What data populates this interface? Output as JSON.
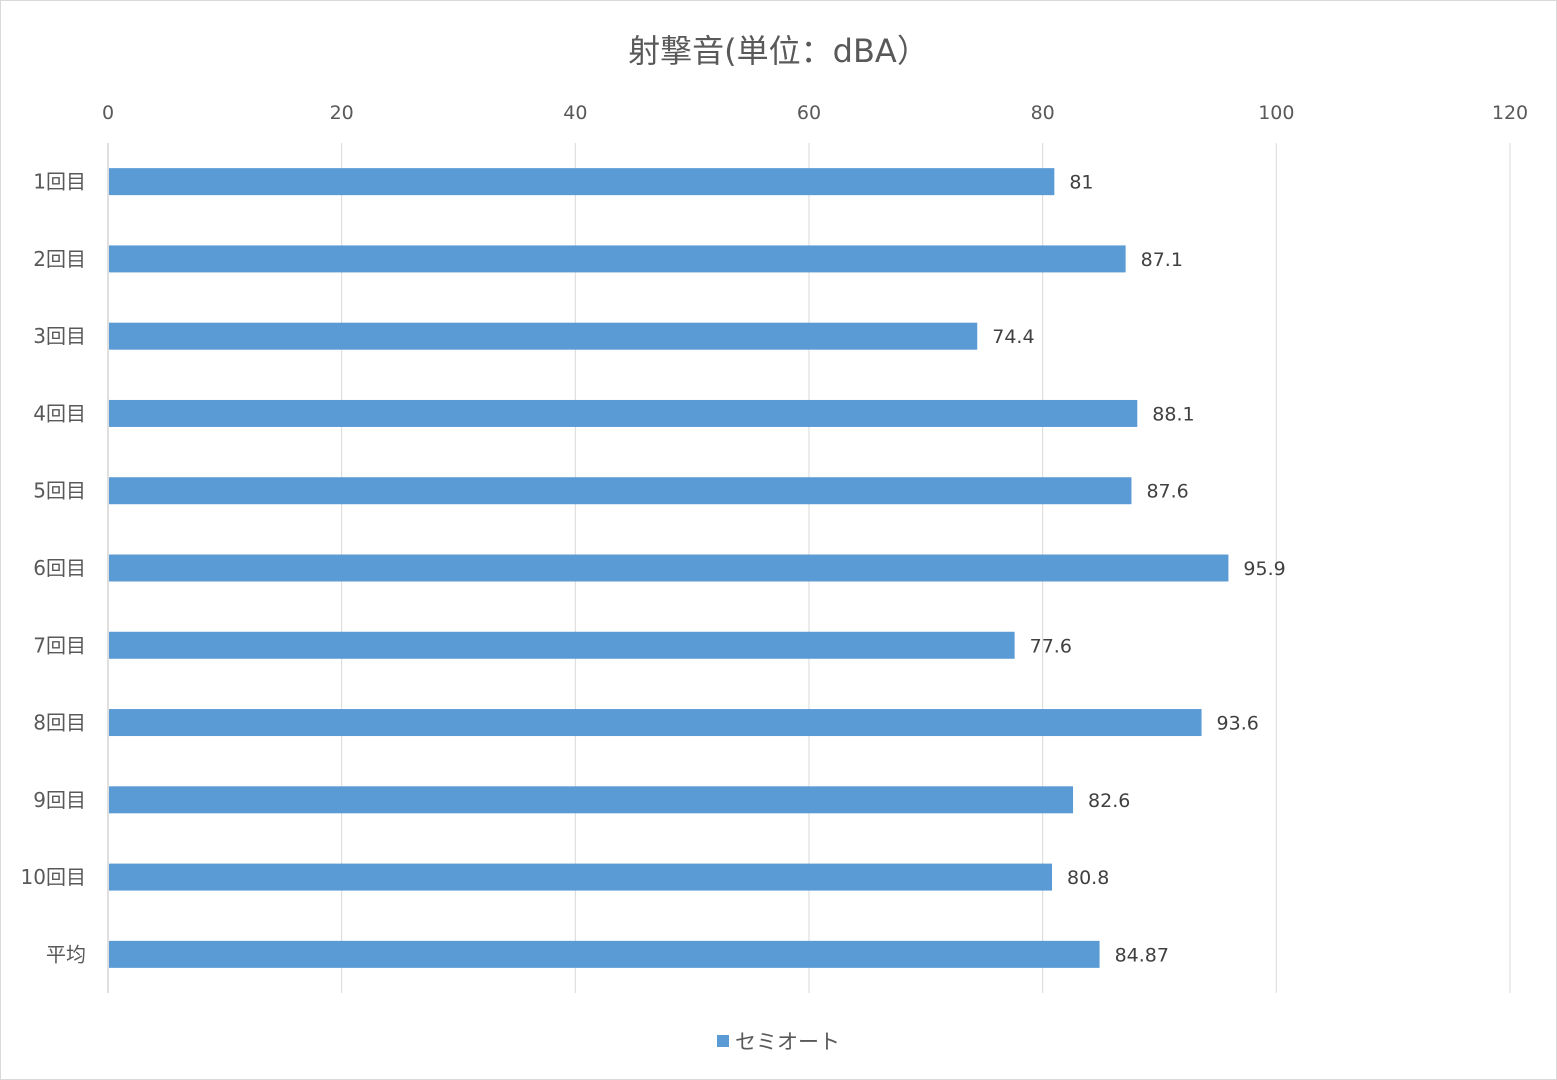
{
  "chart_data": {
    "type": "bar",
    "orientation": "horizontal",
    "title": "射撃音(単位：dBA）",
    "categories": [
      "1回目",
      "2回目",
      "3回目",
      "4回目",
      "5回目",
      "6回目",
      "7回目",
      "8回目",
      "9回目",
      "10回目",
      "平均"
    ],
    "series": [
      {
        "name": "セミオート",
        "values": [
          81,
          87.1,
          74.4,
          88.1,
          87.6,
          95.9,
          77.6,
          93.6,
          82.6,
          80.8,
          84.87
        ],
        "color": "#5b9bd5"
      }
    ],
    "value_labels": [
      "81",
      "87.1",
      "74.4",
      "88.1",
      "87.6",
      "95.9",
      "77.6",
      "93.6",
      "82.6",
      "80.8",
      "84.87"
    ],
    "xlim": [
      0,
      120
    ],
    "x_ticks": [
      "0",
      "20",
      "40",
      "60",
      "80",
      "100",
      "120"
    ],
    "x_axis_position": "top",
    "grid": true,
    "legend_position": "bottom"
  }
}
